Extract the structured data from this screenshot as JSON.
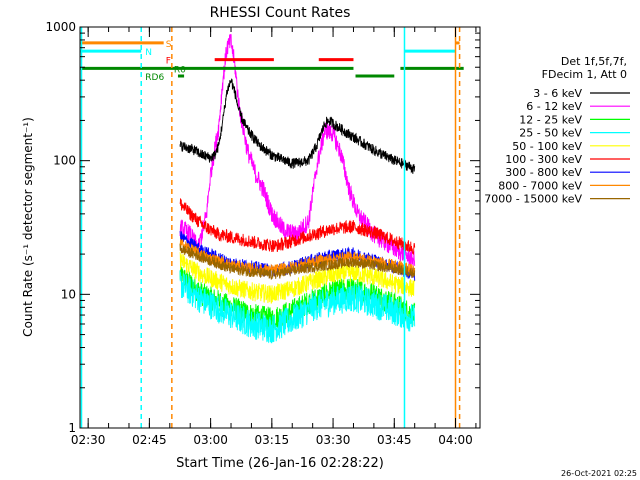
{
  "chart_data": {
    "type": "line",
    "title": "RHESSI Count Rates",
    "xlabel": "Start Time (26-Jan-16 02:28:22)",
    "ylabel": "Count Rate (s⁻¹ detector segment⁻¹)",
    "y_scale": "log",
    "ylim": [
      1,
      1000
    ],
    "y_ticks": [
      {
        "value": 1,
        "label": "1"
      },
      {
        "value": 10,
        "label": "10"
      },
      {
        "value": 100,
        "label": "100"
      },
      {
        "value": 1000,
        "label": "1000"
      }
    ],
    "xlim": [
      "02:28",
      "04:06"
    ],
    "x_ticks": [
      "02:30",
      "02:45",
      "03:00",
      "03:15",
      "03:30",
      "03:45",
      "04:00"
    ],
    "legend_position": "right",
    "legend_header": [
      "Det 1f,5f,7f,",
      "FDecim 1, Att 0"
    ],
    "timestamp": "26-Oct-2021 02:25",
    "series": [
      {
        "name": "3 - 6 keV",
        "color": "#000000",
        "noise": 0.04,
        "points": [
          [
            "02:52:30",
            130
          ],
          [
            "02:56",
            120
          ],
          [
            "02:58",
            110
          ],
          [
            "03:00",
            105
          ],
          [
            "03:01",
            110
          ],
          [
            "03:02",
            130
          ],
          [
            "03:03",
            200
          ],
          [
            "03:04",
            330
          ],
          [
            "03:05",
            400
          ],
          [
            "03:06",
            320
          ],
          [
            "03:07",
            230
          ],
          [
            "03:09",
            170
          ],
          [
            "03:12",
            130
          ],
          [
            "03:15",
            110
          ],
          [
            "03:20",
            95
          ],
          [
            "03:24",
            100
          ],
          [
            "03:26",
            130
          ],
          [
            "03:28",
            190
          ],
          [
            "03:29",
            200
          ],
          [
            "03:31",
            180
          ],
          [
            "03:35",
            150
          ],
          [
            "03:40",
            120
          ],
          [
            "03:45",
            100
          ],
          [
            "03:49",
            90
          ],
          [
            "03:50",
            85
          ]
        ]
      },
      {
        "name": "6 - 12 keV",
        "color": "#ff00ff",
        "noise": 0.07,
        "points": [
          [
            "02:52:30",
            32
          ],
          [
            "02:55",
            28
          ],
          [
            "02:57",
            22
          ],
          [
            "02:59",
            40
          ],
          [
            "03:00",
            80
          ],
          [
            "03:01",
            120
          ],
          [
            "03:02",
            180
          ],
          [
            "03:03",
            400
          ],
          [
            "03:04",
            700
          ],
          [
            "03:05",
            780
          ],
          [
            "03:06",
            500
          ],
          [
            "03:07",
            250
          ],
          [
            "03:09",
            120
          ],
          [
            "03:11",
            80
          ],
          [
            "03:13",
            60
          ],
          [
            "03:15",
            40
          ],
          [
            "03:18",
            30
          ],
          [
            "03:21",
            28
          ],
          [
            "03:24",
            35
          ],
          [
            "03:26",
            90
          ],
          [
            "03:28",
            170
          ],
          [
            "03:30",
            160
          ],
          [
            "03:32",
            110
          ],
          [
            "03:34",
            60
          ],
          [
            "03:36",
            40
          ],
          [
            "03:40",
            28
          ],
          [
            "03:45",
            22
          ],
          [
            "03:50",
            18
          ]
        ]
      },
      {
        "name": "12 - 25 keV",
        "color": "#00ff00",
        "noise": 0.09,
        "points": [
          [
            "02:52:30",
            14
          ],
          [
            "02:58",
            10
          ],
          [
            "03:05",
            8
          ],
          [
            "03:10",
            7
          ],
          [
            "03:15",
            6.5
          ],
          [
            "03:20",
            7.5
          ],
          [
            "03:25",
            9
          ],
          [
            "03:30",
            10.5
          ],
          [
            "03:35",
            11
          ],
          [
            "03:40",
            10
          ],
          [
            "03:45",
            8.5
          ],
          [
            "03:50",
            7
          ]
        ]
      },
      {
        "name": "25 - 50 keV",
        "color": "#00ffff",
        "noise": 0.11,
        "points": [
          [
            "02:52:30",
            12
          ],
          [
            "02:58",
            9
          ],
          [
            "03:05",
            7
          ],
          [
            "03:10",
            6
          ],
          [
            "03:15",
            5.5
          ],
          [
            "03:20",
            6.5
          ],
          [
            "03:25",
            8
          ],
          [
            "03:30",
            9
          ],
          [
            "03:35",
            9.5
          ],
          [
            "03:40",
            8.5
          ],
          [
            "03:45",
            7.5
          ],
          [
            "03:50",
            6.5
          ]
        ]
      },
      {
        "name": "50 - 100 keV",
        "color": "#ffff00",
        "noise": 0.07,
        "points": [
          [
            "02:52:30",
            18
          ],
          [
            "02:58",
            14
          ],
          [
            "03:05",
            11.5
          ],
          [
            "03:10",
            10.5
          ],
          [
            "03:15",
            10
          ],
          [
            "03:20",
            11
          ],
          [
            "03:25",
            12.5
          ],
          [
            "03:30",
            14
          ],
          [
            "03:35",
            14.5
          ],
          [
            "03:40",
            13.5
          ],
          [
            "03:45",
            12
          ],
          [
            "03:50",
            11
          ]
        ]
      },
      {
        "name": "100 - 300 keV",
        "color": "#ff0000",
        "noise": 0.05,
        "points": [
          [
            "02:52:30",
            48
          ],
          [
            "02:55",
            40
          ],
          [
            "02:58",
            33
          ],
          [
            "03:02",
            28
          ],
          [
            "03:07",
            26
          ],
          [
            "03:12",
            24
          ],
          [
            "03:16",
            23
          ],
          [
            "03:20",
            25
          ],
          [
            "03:25",
            28
          ],
          [
            "03:30",
            31
          ],
          [
            "03:35",
            32
          ],
          [
            "03:40",
            29
          ],
          [
            "03:45",
            25
          ],
          [
            "03:50",
            22
          ]
        ]
      },
      {
        "name": "300 - 800 keV",
        "color": "#0000ff",
        "noise": 0.05,
        "points": [
          [
            "02:52:30",
            27
          ],
          [
            "02:58",
            21
          ],
          [
            "03:05",
            17
          ],
          [
            "03:10",
            16
          ],
          [
            "03:15",
            15
          ],
          [
            "03:20",
            16
          ],
          [
            "03:25",
            18
          ],
          [
            "03:30",
            19.5
          ],
          [
            "03:35",
            20
          ],
          [
            "03:40",
            18
          ],
          [
            "03:45",
            16
          ],
          [
            "03:50",
            14
          ]
        ]
      },
      {
        "name": "800 - 7000 keV",
        "color": "#ff8800",
        "noise": 0.045,
        "points": [
          [
            "02:52:30",
            24
          ],
          [
            "02:58",
            19.5
          ],
          [
            "03:05",
            16.5
          ],
          [
            "03:10",
            15.5
          ],
          [
            "03:15",
            15
          ],
          [
            "03:20",
            16
          ],
          [
            "03:25",
            17.5
          ],
          [
            "03:30",
            18.5
          ],
          [
            "03:35",
            19
          ],
          [
            "03:40",
            17.5
          ],
          [
            "03:45",
            16.5
          ],
          [
            "03:50",
            15
          ]
        ]
      },
      {
        "name": "7000 - 15000 keV",
        "color": "#996600",
        "noise": 0.04,
        "points": [
          [
            "02:52:30",
            22
          ],
          [
            "03:05",
            15.5
          ],
          [
            "03:15",
            14
          ],
          [
            "03:25",
            16
          ],
          [
            "03:35",
            17.5
          ],
          [
            "03:45",
            15.5
          ],
          [
            "03:50",
            14.5
          ]
        ]
      }
    ],
    "flag_bars": [
      {
        "label": "S",
        "color": "#ff8800",
        "value": 760,
        "segments": [
          [
            "02:28",
            "02:48:30"
          ],
          [
            "04:00",
            "04:01"
          ]
        ],
        "label_at": "02:49"
      },
      {
        "label": "N",
        "color": "#00ffff",
        "value": 660,
        "segments": [
          [
            "02:28",
            "02:43"
          ],
          [
            "03:47:30",
            "04:00"
          ]
        ],
        "label_at": "02:44"
      },
      {
        "label": "F",
        "color": "#ff0000",
        "value": 570,
        "segments": [
          [
            "03:01",
            "03:15:30"
          ],
          [
            "03:26:30",
            "03:35"
          ]
        ],
        "label_at": "02:49"
      },
      {
        "label": "R0",
        "color": "#008800",
        "value": 490,
        "segments": [
          [
            "02:28",
            "03:35"
          ],
          [
            "03:46:30",
            "04:02"
          ]
        ],
        "label_at": "02:51"
      },
      {
        "label": "RD6",
        "color": "#008800",
        "value": 430,
        "segments": [
          [
            "02:52",
            "02:53:30"
          ],
          [
            "03:35:30",
            "03:45"
          ]
        ],
        "label_at": "02:44"
      }
    ],
    "markers": [
      {
        "time": "02:28:22",
        "color": "#00ffff",
        "style": "solid"
      },
      {
        "time": "02:43",
        "color": "#00ffff",
        "style": "dashed"
      },
      {
        "time": "02:50:30",
        "color": "#ff8800",
        "style": "dashed"
      },
      {
        "time": "03:47:30",
        "color": "#00ffff",
        "style": "solid"
      },
      {
        "time": "04:00",
        "color": "#ff8800",
        "style": "solid"
      },
      {
        "time": "04:01",
        "color": "#ff8800",
        "style": "dashed"
      }
    ]
  }
}
